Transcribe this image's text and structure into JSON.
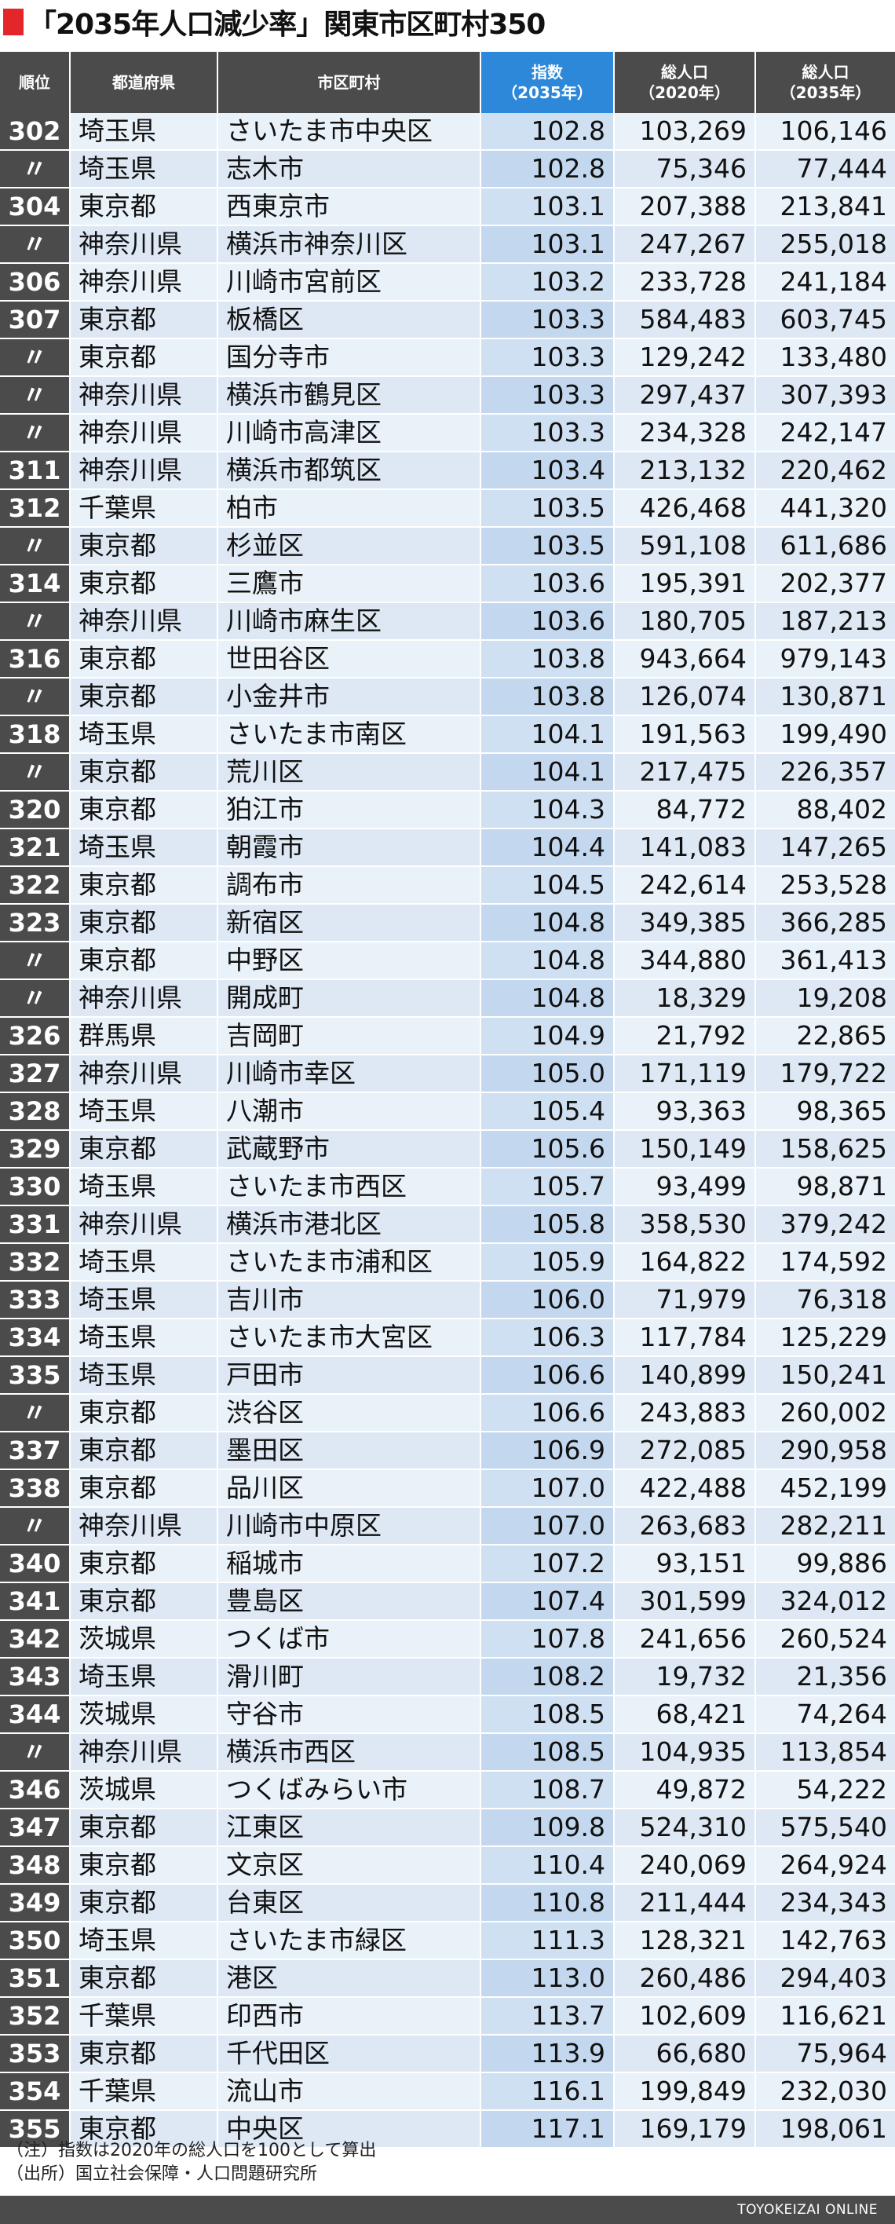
{
  "title": "「2035年人口減少率」関東市区町村350",
  "headers": {
    "rank": "順位",
    "pref": "都道府県",
    "city": "市区町村",
    "idx_1": "指数",
    "idx_2": "（2035年）",
    "p2020_1": "総人口",
    "p2020_2": "（2020年）",
    "p2035_1": "総人口",
    "p2035_2": "（2035年）"
  },
  "rows": [
    [
      "302",
      "埼玉県",
      "さいたま市中央区",
      "102.8",
      "103,269",
      "106,146"
    ],
    [
      "〃",
      "埼玉県",
      "志木市",
      "102.8",
      "75,346",
      "77,444"
    ],
    [
      "304",
      "東京都",
      "西東京市",
      "103.1",
      "207,388",
      "213,841"
    ],
    [
      "〃",
      "神奈川県",
      "横浜市神奈川区",
      "103.1",
      "247,267",
      "255,018"
    ],
    [
      "306",
      "神奈川県",
      "川崎市宮前区",
      "103.2",
      "233,728",
      "241,184"
    ],
    [
      "307",
      "東京都",
      "板橋区",
      "103.3",
      "584,483",
      "603,745"
    ],
    [
      "〃",
      "東京都",
      "国分寺市",
      "103.3",
      "129,242",
      "133,480"
    ],
    [
      "〃",
      "神奈川県",
      "横浜市鶴見区",
      "103.3",
      "297,437",
      "307,393"
    ],
    [
      "〃",
      "神奈川県",
      "川崎市高津区",
      "103.3",
      "234,328",
      "242,147"
    ],
    [
      "311",
      "神奈川県",
      "横浜市都筑区",
      "103.4",
      "213,132",
      "220,462"
    ],
    [
      "312",
      "千葉県",
      "柏市",
      "103.5",
      "426,468",
      "441,320"
    ],
    [
      "〃",
      "東京都",
      "杉並区",
      "103.5",
      "591,108",
      "611,686"
    ],
    [
      "314",
      "東京都",
      "三鷹市",
      "103.6",
      "195,391",
      "202,377"
    ],
    [
      "〃",
      "神奈川県",
      "川崎市麻生区",
      "103.6",
      "180,705",
      "187,213"
    ],
    [
      "316",
      "東京都",
      "世田谷区",
      "103.8",
      "943,664",
      "979,143"
    ],
    [
      "〃",
      "東京都",
      "小金井市",
      "103.8",
      "126,074",
      "130,871"
    ],
    [
      "318",
      "埼玉県",
      "さいたま市南区",
      "104.1",
      "191,563",
      "199,490"
    ],
    [
      "〃",
      "東京都",
      "荒川区",
      "104.1",
      "217,475",
      "226,357"
    ],
    [
      "320",
      "東京都",
      "狛江市",
      "104.3",
      "84,772",
      "88,402"
    ],
    [
      "321",
      "埼玉県",
      "朝霞市",
      "104.4",
      "141,083",
      "147,265"
    ],
    [
      "322",
      "東京都",
      "調布市",
      "104.5",
      "242,614",
      "253,528"
    ],
    [
      "323",
      "東京都",
      "新宿区",
      "104.8",
      "349,385",
      "366,285"
    ],
    [
      "〃",
      "東京都",
      "中野区",
      "104.8",
      "344,880",
      "361,413"
    ],
    [
      "〃",
      "神奈川県",
      "開成町",
      "104.8",
      "18,329",
      "19,208"
    ],
    [
      "326",
      "群馬県",
      "吉岡町",
      "104.9",
      "21,792",
      "22,865"
    ],
    [
      "327",
      "神奈川県",
      "川崎市幸区",
      "105.0",
      "171,119",
      "179,722"
    ],
    [
      "328",
      "埼玉県",
      "八潮市",
      "105.4",
      "93,363",
      "98,365"
    ],
    [
      "329",
      "東京都",
      "武蔵野市",
      "105.6",
      "150,149",
      "158,625"
    ],
    [
      "330",
      "埼玉県",
      "さいたま市西区",
      "105.7",
      "93,499",
      "98,871"
    ],
    [
      "331",
      "神奈川県",
      "横浜市港北区",
      "105.8",
      "358,530",
      "379,242"
    ],
    [
      "332",
      "埼玉県",
      "さいたま市浦和区",
      "105.9",
      "164,822",
      "174,592"
    ],
    [
      "333",
      "埼玉県",
      "吉川市",
      "106.0",
      "71,979",
      "76,318"
    ],
    [
      "334",
      "埼玉県",
      "さいたま市大宮区",
      "106.3",
      "117,784",
      "125,229"
    ],
    [
      "335",
      "埼玉県",
      "戸田市",
      "106.6",
      "140,899",
      "150,241"
    ],
    [
      "〃",
      "東京都",
      "渋谷区",
      "106.6",
      "243,883",
      "260,002"
    ],
    [
      "337",
      "東京都",
      "墨田区",
      "106.9",
      "272,085",
      "290,958"
    ],
    [
      "338",
      "東京都",
      "品川区",
      "107.0",
      "422,488",
      "452,199"
    ],
    [
      "〃",
      "神奈川県",
      "川崎市中原区",
      "107.0",
      "263,683",
      "282,211"
    ],
    [
      "340",
      "東京都",
      "稲城市",
      "107.2",
      "93,151",
      "99,886"
    ],
    [
      "341",
      "東京都",
      "豊島区",
      "107.4",
      "301,599",
      "324,012"
    ],
    [
      "342",
      "茨城県",
      "つくば市",
      "107.8",
      "241,656",
      "260,524"
    ],
    [
      "343",
      "埼玉県",
      "滑川町",
      "108.2",
      "19,732",
      "21,356"
    ],
    [
      "344",
      "茨城県",
      "守谷市",
      "108.5",
      "68,421",
      "74,264"
    ],
    [
      "〃",
      "神奈川県",
      "横浜市西区",
      "108.5",
      "104,935",
      "113,854"
    ],
    [
      "346",
      "茨城県",
      "つくばみらい市",
      "108.7",
      "49,872",
      "54,222"
    ],
    [
      "347",
      "東京都",
      "江東区",
      "109.8",
      "524,310",
      "575,540"
    ],
    [
      "348",
      "東京都",
      "文京区",
      "110.4",
      "240,069",
      "264,924"
    ],
    [
      "349",
      "東京都",
      "台東区",
      "110.8",
      "211,444",
      "234,343"
    ],
    [
      "350",
      "埼玉県",
      "さいたま市緑区",
      "111.3",
      "128,321",
      "142,763"
    ],
    [
      "351",
      "東京都",
      "港区",
      "113.0",
      "260,486",
      "294,403"
    ],
    [
      "352",
      "千葉県",
      "印西市",
      "113.7",
      "102,609",
      "116,621"
    ],
    [
      "353",
      "東京都",
      "千代田区",
      "113.9",
      "66,680",
      "75,964"
    ],
    [
      "354",
      "千葉県",
      "流山市",
      "116.1",
      "199,849",
      "232,030"
    ],
    [
      "355",
      "東京都",
      "中央区",
      "117.1",
      "169,179",
      "198,061"
    ]
  ],
  "notes": {
    "note1": "（注）指数は2020年の総人口を100として算出",
    "note2": "（出所）国立社会保障・人口問題研究所"
  },
  "footer": "TOYOKEIZAI ONLINE",
  "colors": {
    "accent": "#e4262b",
    "header_bg": "#4b4b4b",
    "index_header_bg": "#2e88d9"
  }
}
